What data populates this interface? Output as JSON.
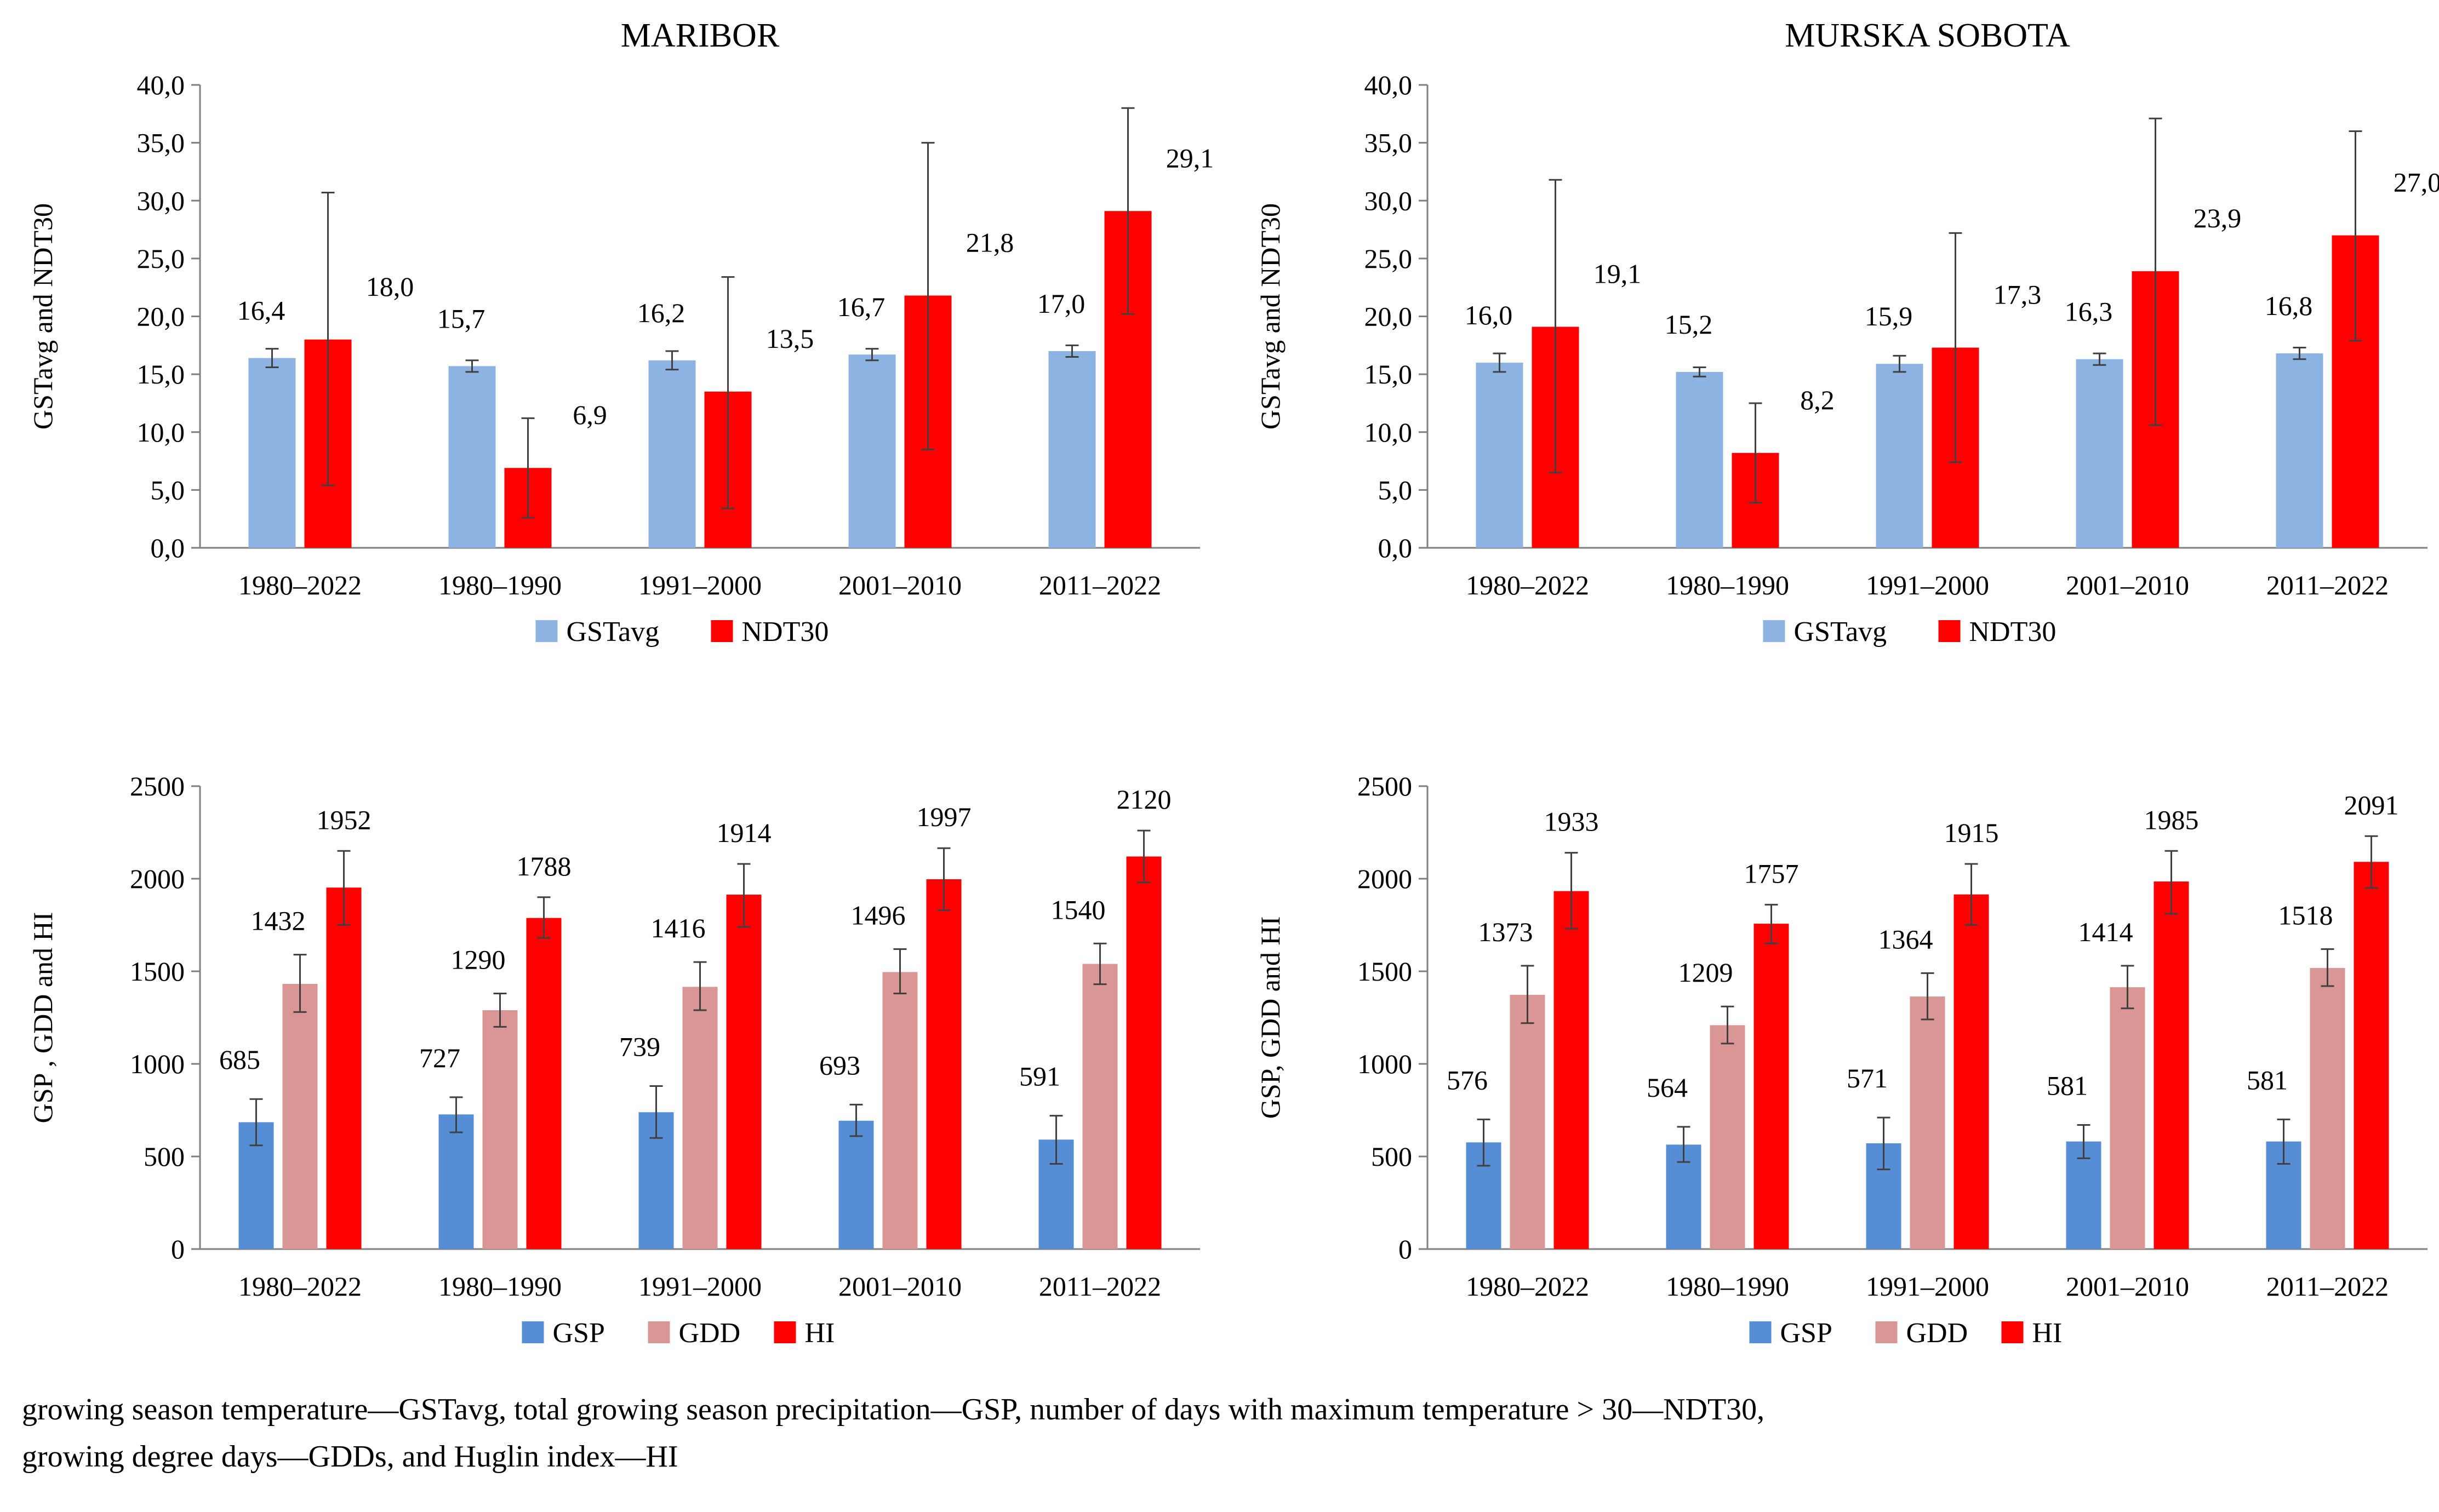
{
  "caption": {
    "line1": "growing season temperature—GSTavg, total growing season precipitation—GSP, number of days with maximum temperature > 30—NDT30,",
    "line2": "growing degree days—GDDs, and Huglin index—HI"
  },
  "chart_data": [
    {
      "id": "maribor-temp",
      "type": "bar",
      "title": "MARIBOR",
      "ylabel": "GSTavg and NDT30",
      "xlabel": "",
      "ylim": [
        0,
        40
      ],
      "yticks": [
        0,
        5,
        10,
        15,
        20,
        25,
        30,
        35,
        40
      ],
      "tick_format": "comma1",
      "categories": [
        "1980–2022",
        "1980–1990",
        "1991–2000",
        "2001–2010",
        "2011–2022"
      ],
      "series": [
        {
          "name": "GSTavg",
          "color": "#8DB3E2",
          "values": [
            16.4,
            15.7,
            16.2,
            16.7,
            17.0
          ],
          "labels": [
            "16,4",
            "15,7",
            "16,2",
            "16,7",
            "17,0"
          ],
          "error_low": [
            15.6,
            15.2,
            15.4,
            16.2,
            16.5
          ],
          "error_high": [
            17.2,
            16.2,
            17.0,
            17.2,
            17.5
          ]
        },
        {
          "name": "NDT30",
          "color": "#FF0000",
          "values": [
            18.0,
            6.9,
            13.5,
            21.8,
            29.1
          ],
          "labels": [
            "18,0",
            "6,9",
            "13,5",
            "21,8",
            "29,1"
          ],
          "error_low": [
            5.4,
            2.6,
            3.4,
            8.5,
            20.2
          ],
          "error_high": [
            30.7,
            11.2,
            23.4,
            35.0,
            38.0
          ]
        }
      ],
      "legend": "bottom"
    },
    {
      "id": "murska-temp",
      "type": "bar",
      "title": "MURSKA SOBOTA",
      "ylabel": "GSTavg  and NDT30",
      "xlabel": "",
      "ylim": [
        0,
        40
      ],
      "yticks": [
        0,
        5,
        10,
        15,
        20,
        25,
        30,
        35,
        40
      ],
      "tick_format": "comma1",
      "categories": [
        "1980–2022",
        "1980–1990",
        "1991–2000",
        "2001–2010",
        "2011–2022"
      ],
      "series": [
        {
          "name": "GSTavg",
          "color": "#8DB3E2",
          "values": [
            16.0,
            15.2,
            15.9,
            16.3,
            16.8
          ],
          "labels": [
            "16,0",
            "15,2",
            "15,9",
            "16,3",
            "16,8"
          ],
          "error_low": [
            15.2,
            14.8,
            15.2,
            15.8,
            16.3
          ],
          "error_high": [
            16.8,
            15.6,
            16.6,
            16.8,
            17.3
          ]
        },
        {
          "name": "NDT30",
          "color": "#FF0000",
          "values": [
            19.1,
            8.2,
            17.3,
            23.9,
            27.0
          ],
          "labels": [
            "19,1",
            "8,2",
            "17,3",
            "23,9",
            "27,0"
          ],
          "error_low": [
            6.5,
            3.9,
            7.4,
            10.6,
            17.9
          ],
          "error_high": [
            31.8,
            12.5,
            27.2,
            37.1,
            36.0
          ]
        }
      ],
      "legend": "bottom"
    },
    {
      "id": "maribor-precip",
      "type": "bar",
      "title": "",
      "ylabel": "GSP , GDD and HI",
      "xlabel": "",
      "ylim": [
        0,
        2500
      ],
      "yticks": [
        0,
        500,
        1000,
        1500,
        2000,
        2500
      ],
      "tick_format": "int",
      "categories": [
        "1980–2022",
        "1980–1990",
        "1991–2000",
        "2001–2010",
        "2011–2022"
      ],
      "series": [
        {
          "name": "GSP",
          "color": "#558ED5",
          "values": [
            685,
            727,
            739,
            693,
            591
          ],
          "labels": [
            "685",
            "727",
            "739",
            "693",
            "591"
          ],
          "error_low": [
            560,
            630,
            600,
            610,
            460
          ],
          "error_high": [
            810,
            820,
            880,
            780,
            720
          ]
        },
        {
          "name": "GDD",
          "color": "#D99694",
          "values": [
            1432,
            1290,
            1416,
            1496,
            1540
          ],
          "labels": [
            "1432",
            "1290",
            "1416",
            "1496",
            "1540"
          ],
          "error_low": [
            1280,
            1200,
            1290,
            1380,
            1430
          ],
          "error_high": [
            1590,
            1380,
            1550,
            1620,
            1650
          ]
        },
        {
          "name": "HI",
          "color": "#FF0000",
          "values": [
            1952,
            1788,
            1914,
            1997,
            2120
          ],
          "labels": [
            "1952",
            "1788",
            "1914",
            "1997",
            "2120"
          ],
          "error_low": [
            1750,
            1680,
            1740,
            1830,
            1980
          ],
          "error_high": [
            2150,
            1900,
            2080,
            2165,
            2260
          ]
        }
      ],
      "legend": "bottom"
    },
    {
      "id": "murska-precip",
      "type": "bar",
      "title": "",
      "ylabel": "GSP, GDD and HI",
      "xlabel": "",
      "ylim": [
        0,
        2500
      ],
      "yticks": [
        0,
        500,
        1000,
        1500,
        2000,
        2500
      ],
      "tick_format": "int",
      "categories": [
        "1980–2022",
        "1980–1990",
        "1991–2000",
        "2001–2010",
        "2011–2022"
      ],
      "series": [
        {
          "name": "GSP",
          "color": "#558ED5",
          "values": [
            576,
            564,
            571,
            581,
            581
          ],
          "labels": [
            "576",
            "564",
            "571",
            "581",
            "581"
          ],
          "error_low": [
            450,
            470,
            430,
            490,
            460
          ],
          "error_high": [
            700,
            660,
            710,
            670,
            700
          ]
        },
        {
          "name": "GDD",
          "color": "#D99694",
          "values": [
            1373,
            1209,
            1364,
            1414,
            1518
          ],
          "labels": [
            "1373",
            "1209",
            "1364",
            "1414",
            "1518"
          ],
          "error_low": [
            1220,
            1110,
            1240,
            1300,
            1420
          ],
          "error_high": [
            1530,
            1310,
            1490,
            1530,
            1620
          ]
        },
        {
          "name": "HI",
          "color": "#FF0000",
          "values": [
            1933,
            1757,
            1915,
            1985,
            2091
          ],
          "labels": [
            "1933",
            "1757",
            "1915",
            "1985",
            "2091"
          ],
          "error_low": [
            1730,
            1650,
            1750,
            1810,
            1950
          ],
          "error_high": [
            2140,
            1860,
            2080,
            2150,
            2230
          ]
        }
      ],
      "legend": "bottom"
    }
  ]
}
